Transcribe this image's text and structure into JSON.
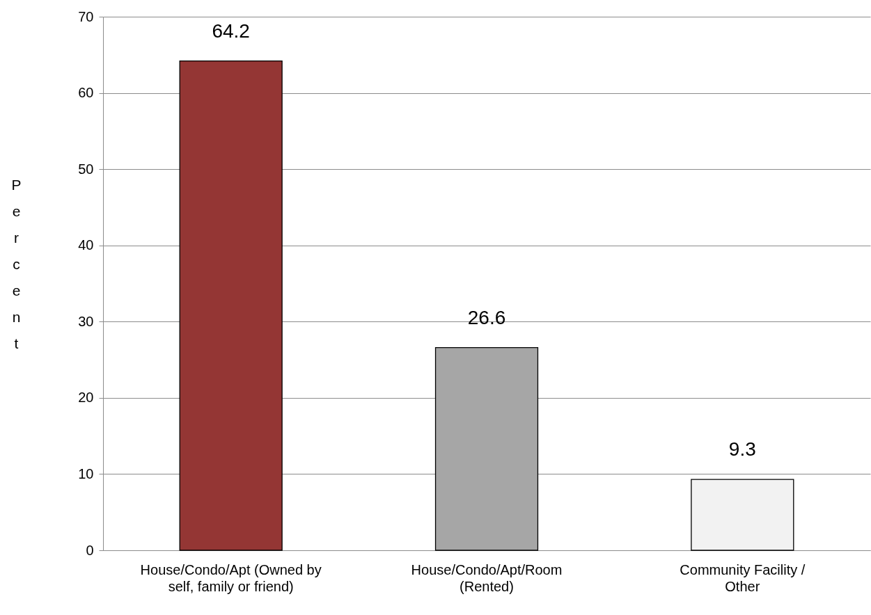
{
  "chart_data": {
    "type": "bar",
    "ylabel": "Percent",
    "categories": [
      "House/Condo/Apt (Owned by self, family or friend)",
      "House/Condo/Apt/Room (Rented)",
      "Community Facility / Other"
    ],
    "values": [
      64.2,
      26.6,
      9.3
    ],
    "colors": [
      "#943634",
      "#a6a6a6",
      "#f2f2f2"
    ],
    "ylim": [
      0,
      70
    ],
    "yticks": [
      0,
      10,
      20,
      30,
      40,
      50,
      60,
      70
    ],
    "grid": "y",
    "data_labels": true
  }
}
